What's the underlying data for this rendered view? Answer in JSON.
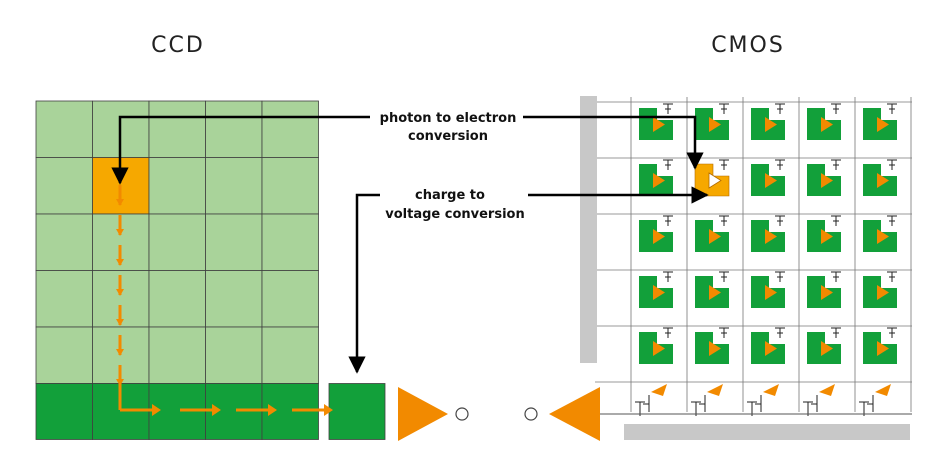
{
  "titles": {
    "left": "CCD",
    "right": "CMOS"
  },
  "labels": {
    "photon_line1": "photon to electron",
    "photon_line2": "conversion",
    "charge_line1": "charge to",
    "charge_line2": "voltage conversion"
  },
  "grid": {
    "ccd_rows": 5,
    "ccd_cols": 5,
    "cmos_rows": 5,
    "cmos_cols": 5,
    "highlighted_ccd_pixel": {
      "row": 2,
      "col": 2
    },
    "highlighted_cmos_pixel": {
      "row": 2,
      "col": 2
    }
  },
  "colors": {
    "light_green": "#a9d39a",
    "dark_green": "#12a03a",
    "orange": "#f28a00",
    "gold": "#f6a800",
    "grid_line": "#404040",
    "cmos_bus": "#c8c8c8",
    "arrow": "#000000"
  }
}
